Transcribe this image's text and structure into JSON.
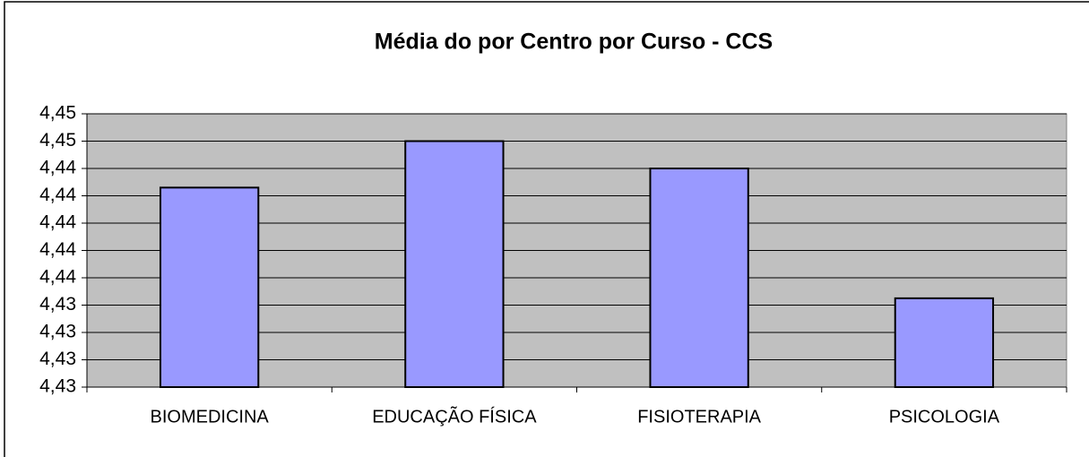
{
  "chart_data": {
    "type": "bar",
    "title": "Média do por Centro por Curso - CCS",
    "categories": [
      "BIOMEDICINA",
      "EDUCAÇÃO FÍSICA",
      "FISIOTERAPIA",
      "PSICOLOGIA"
    ],
    "values": [
      4.4426,
      4.446,
      4.444,
      4.4345
    ],
    "color": "#9999ff",
    "ylim": [
      4.428,
      4.448
    ],
    "yticks": [
      {
        "value": 4.428,
        "label": "4,43"
      },
      {
        "value": 4.43,
        "label": "4,43"
      },
      {
        "value": 4.432,
        "label": "4,43"
      },
      {
        "value": 4.434,
        "label": "4,43"
      },
      {
        "value": 4.436,
        "label": "4,44"
      },
      {
        "value": 4.438,
        "label": "4,44"
      },
      {
        "value": 4.44,
        "label": "4,44"
      },
      {
        "value": 4.442,
        "label": "4,44"
      },
      {
        "value": 4.444,
        "label": "4,44"
      },
      {
        "value": 4.446,
        "label": "4,45"
      },
      {
        "value": 4.448,
        "label": "4,45"
      }
    ],
    "grid": true
  }
}
